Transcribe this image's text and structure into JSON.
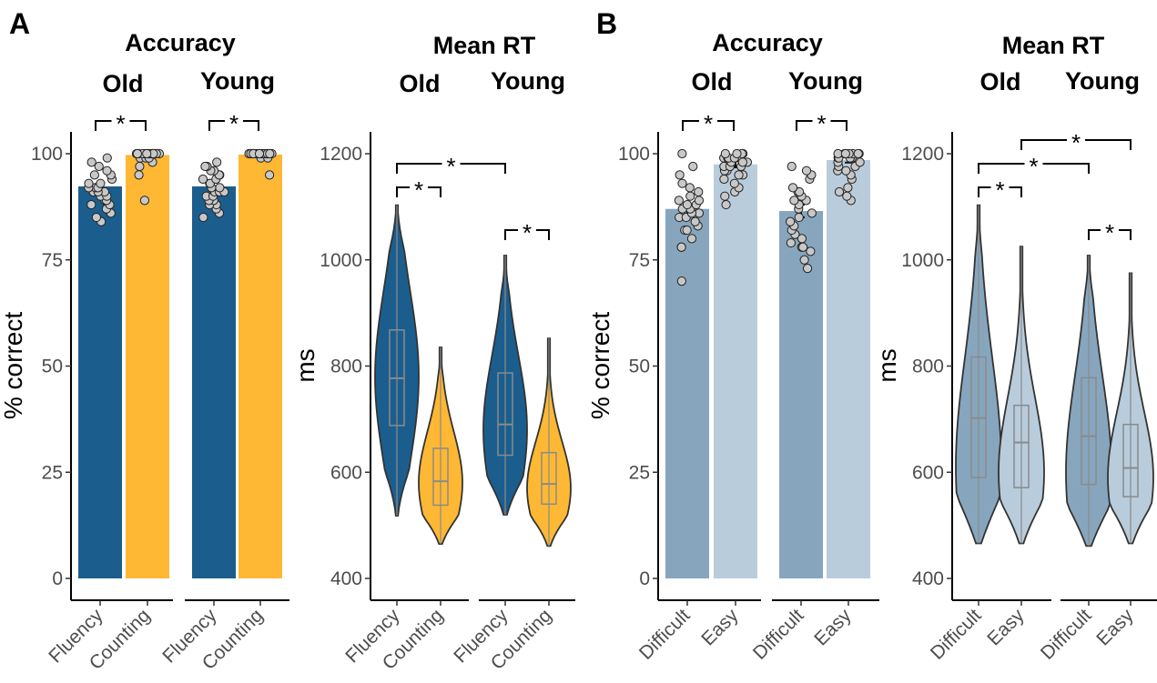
{
  "colors": {
    "fluency": "#1b5e8e",
    "counting": "#ffb833",
    "difficult": "#87a6be",
    "easy": "#b8ccdc",
    "outline": "#333333",
    "dot": "#c8c8c8",
    "boxline": "#8a8a8a"
  },
  "chart_data": [
    {
      "panel": "A",
      "type": "bar",
      "title": "Accuracy",
      "ylabel": "% correct",
      "ylim": [
        0,
        105
      ],
      "yticks": [
        0,
        25,
        50,
        75,
        100
      ],
      "facets": [
        {
          "name": "Old",
          "categories": [
            "Fluency",
            "Counting"
          ],
          "values": [
            92.3,
            99.7
          ],
          "errors": [
            0.9,
            0.4
          ],
          "points": [
            [
              84,
              85,
              86,
              87,
              88,
              88,
              89,
              89,
              90,
              90,
              91,
              91,
              91,
              92,
              92,
              92,
              93,
              93,
              94,
              95,
              95,
              96,
              97,
              98,
              99
            ],
            [
              89,
              95,
              97,
              98,
              99,
              99,
              99,
              100,
              100,
              100,
              100,
              100,
              100,
              100,
              100,
              100,
              100,
              100,
              100,
              100,
              100,
              100,
              100,
              100,
              100
            ]
          ]
        },
        {
          "name": "Young",
          "categories": [
            "Fluency",
            "Counting"
          ],
          "values": [
            92.3,
            99.8
          ],
          "errors": [
            0.9,
            0.3
          ],
          "points": [
            [
              85,
              86,
              87,
              88,
              88,
              89,
              89,
              90,
              90,
              91,
              91,
              91,
              92,
              92,
              93,
              93,
              94,
              94,
              95,
              95,
              96,
              96,
              97,
              97,
              98
            ],
            [
              95,
              99,
              99,
              100,
              100,
              100,
              100,
              100,
              100,
              100,
              100,
              100,
              100,
              100,
              100,
              100,
              100,
              100,
              100,
              100,
              100,
              100,
              100,
              100,
              100
            ]
          ]
        }
      ],
      "significance": [
        {
          "facet": "Old",
          "from": "Fluency",
          "to": "Counting",
          "label": "*"
        },
        {
          "facet": "Young",
          "from": "Fluency",
          "to": "Counting",
          "label": "*"
        }
      ]
    },
    {
      "panel": "A",
      "type": "violin",
      "title": "Mean RT",
      "ylabel": "ms",
      "ylim": [
        380,
        1250
      ],
      "yticks": [
        400,
        600,
        800,
        1000,
        1200
      ],
      "facets": [
        {
          "name": "Old",
          "categories": [
            "Fluency",
            "Counting"
          ],
          "stats": [
            {
              "min": 518,
              "q1": 688,
              "median": 777,
              "q3": 868,
              "max": 1103,
              "mode": 780
            },
            {
              "min": 465,
              "q1": 538,
              "median": 583,
              "q3": 645,
              "max": 835,
              "mode": 580
            }
          ]
        },
        {
          "name": "Young",
          "categories": [
            "Fluency",
            "Counting"
          ],
          "stats": [
            {
              "min": 520,
              "q1": 632,
              "median": 690,
              "q3": 787,
              "max": 1008,
              "mode": 680
            },
            {
              "min": 461,
              "q1": 540,
              "median": 578,
              "q3": 637,
              "max": 852,
              "mode": 570
            }
          ]
        }
      ],
      "significance": [
        {
          "from": "Old.Fluency",
          "to": "Old.Counting",
          "label": "*"
        },
        {
          "from": "Old.Fluency",
          "to": "Young.Fluency",
          "label": "*"
        },
        {
          "from": "Young.Fluency",
          "to": "Young.Counting",
          "label": "*"
        }
      ]
    },
    {
      "panel": "B",
      "type": "bar",
      "title": "Accuracy",
      "ylabel": "% correct",
      "ylim": [
        0,
        105
      ],
      "yticks": [
        0,
        25,
        50,
        75,
        100
      ],
      "facets": [
        {
          "name": "Old",
          "categories": [
            "Difficult",
            "Easy"
          ],
          "values": [
            87,
            97.5
          ],
          "errors": [
            1.4,
            0.7
          ],
          "points": [
            [
              70,
              78,
              78,
              80,
              82,
              82,
              83,
              84,
              85,
              85,
              86,
              86,
              87,
              87,
              88,
              88,
              89,
              89,
              90,
              91,
              92,
              93,
              95,
              97,
              100
            ],
            [
              88,
              90,
              91,
              92,
              93,
              94,
              95,
              95,
              96,
              96,
              97,
              97,
              97,
              98,
              98,
              98,
              99,
              99,
              99,
              99,
              100,
              100,
              100,
              100,
              100
            ]
          ]
        },
        {
          "name": "Young",
          "categories": [
            "Difficult",
            "Easy"
          ],
          "values": [
            86.5,
            98.5
          ],
          "errors": [
            1.5,
            0.6
          ],
          "points": [
            [
              73,
              75,
              77,
              78,
              78,
              79,
              80,
              81,
              82,
              83,
              84,
              85,
              86,
              87,
              88,
              89,
              89,
              90,
              91,
              91,
              92,
              94,
              95,
              96,
              97
            ],
            [
              89,
              90,
              91,
              92,
              94,
              95,
              96,
              96,
              97,
              97,
              98,
              98,
              99,
              99,
              99,
              99,
              99,
              100,
              100,
              100,
              100,
              100,
              100,
              100,
              100
            ]
          ]
        }
      ],
      "significance": [
        {
          "facet": "Old",
          "from": "Difficult",
          "to": "Easy",
          "label": "*"
        },
        {
          "facet": "Young",
          "from": "Difficult",
          "to": "Easy",
          "label": "*"
        }
      ]
    },
    {
      "panel": "B",
      "type": "violin",
      "title": "Mean RT",
      "ylabel": "ms",
      "ylim": [
        380,
        1250
      ],
      "yticks": [
        400,
        600,
        800,
        1000,
        1200
      ],
      "facets": [
        {
          "name": "Old",
          "categories": [
            "Difficult",
            "Easy"
          ],
          "stats": [
            {
              "min": 466,
              "q1": 590,
              "median": 702,
              "q3": 817,
              "max": 1103,
              "mode": 610
            },
            {
              "min": 466,
              "q1": 571,
              "median": 656,
              "q3": 726,
              "max": 1025,
              "mode": 600
            }
          ]
        },
        {
          "name": "Young",
          "categories": [
            "Difficult",
            "Easy"
          ],
          "stats": [
            {
              "min": 461,
              "q1": 577,
              "median": 668,
              "q3": 778,
              "max": 1008,
              "mode": 600
            },
            {
              "min": 466,
              "q1": 554,
              "median": 608,
              "q3": 690,
              "max": 975,
              "mode": 590
            }
          ]
        }
      ],
      "significance": [
        {
          "from": "Old.Difficult",
          "to": "Old.Easy",
          "label": "*"
        },
        {
          "from": "Old.Difficult",
          "to": "Young.Difficult",
          "label": "*"
        },
        {
          "from": "Old.Easy",
          "to": "Young.Easy",
          "label": "*"
        },
        {
          "from": "Young.Difficult",
          "to": "Young.Easy",
          "label": "*"
        }
      ]
    }
  ]
}
